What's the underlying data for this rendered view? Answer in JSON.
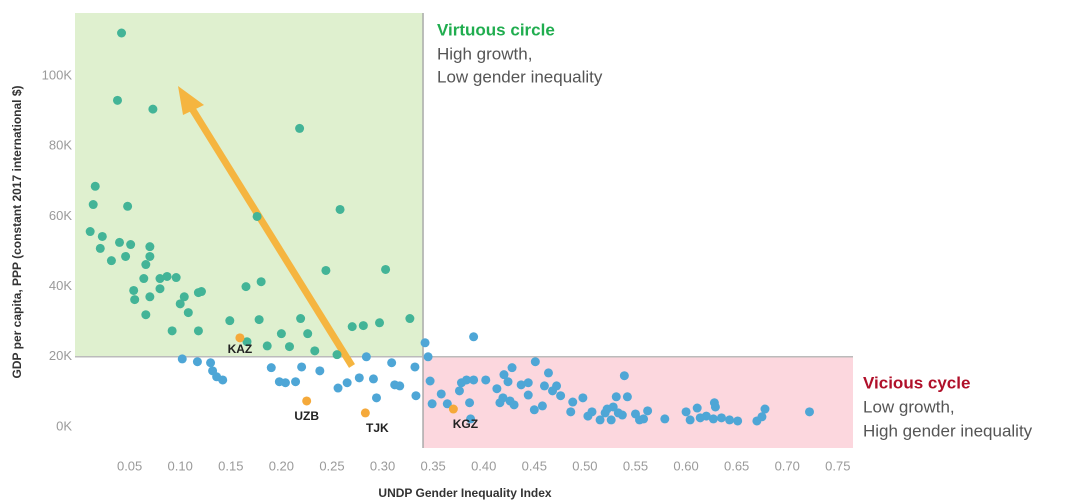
{
  "chart_data": {
    "type": "scatter",
    "x_label": "UNDP Gender Inequality Index",
    "y_label": "GDP per capita, PPP (constant 2017 international $)",
    "xlim": [
      -0.004,
      0.765
    ],
    "ylim": [
      -6000,
      118000
    ],
    "xticks": [
      0.05,
      {
        "value": 0.1,
        "label": "0.10"
      },
      0.15,
      {
        "value": 0.2,
        "label": "0.20"
      },
      0.25,
      {
        "value": 0.3,
        "label": "0.30"
      },
      0.35,
      {
        "value": 0.4,
        "label": "0.40"
      },
      0.45,
      {
        "value": 0.5,
        "label": "0.50"
      },
      0.55,
      {
        "value": 0.6,
        "label": "0.60"
      },
      0.65,
      {
        "value": 0.7,
        "label": "0.70"
      },
      0.75
    ],
    "yticks": [
      {
        "value": 0,
        "label": "0K"
      },
      {
        "value": 20000,
        "label": "20K"
      },
      {
        "value": 40000,
        "label": "40K"
      },
      {
        "value": 60000,
        "label": "60K"
      },
      {
        "value": 80000,
        "label": "80K"
      },
      {
        "value": 100000,
        "label": "100K"
      }
    ],
    "grid": false,
    "thresholds": {
      "x": 0.34,
      "y": 20000
    },
    "quadrant_colors": {
      "virtuous": "#dff0cf",
      "vicious": "#fcd7de"
    },
    "annotations": [
      {
        "text": "Virtuous circle",
        "color": "#20ad4f"
      },
      {
        "text": "High growth,",
        "color": "#555555"
      },
      {
        "text": "Low gender inequality",
        "color": "#555555"
      },
      {
        "text": "Vicious cycle",
        "color": "#b0102a"
      },
      {
        "text": "Low growth,",
        "color": "#555555"
      },
      {
        "text": "High gender inequality",
        "color": "#555555"
      }
    ],
    "series": [
      {
        "color": "#43b497",
        "x": [
          0.042,
          0.038,
          0.073,
          0.218,
          0.016,
          0.014,
          0.048,
          0.258,
          0.011,
          0.023,
          0.04,
          0.051,
          0.07,
          0.021,
          0.032,
          0.046,
          0.07,
          0.066,
          0.244,
          0.303,
          0.064,
          0.08,
          0.087,
          0.096,
          0.08,
          0.054,
          0.121,
          0.118,
          0.165,
          0.18,
          0.104,
          0.07,
          0.055,
          0.1,
          0.108,
          0.066,
          0.149,
          0.178,
          0.219,
          0.327,
          0.297,
          0.281,
          0.27,
          0.092,
          0.118,
          0.2,
          0.226,
          0.166,
          0.186,
          0.208,
          0.233,
          0.176,
          0.255
        ],
        "values": [
          112300,
          93100,
          90600,
          85100,
          68600,
          63400,
          62900,
          62000,
          55700,
          54300,
          52600,
          52000,
          51400,
          50900,
          47400,
          48600,
          48600,
          46300,
          44600,
          44900,
          42300,
          42300,
          42900,
          42600,
          39400,
          38900,
          38600,
          38300,
          40000,
          41400,
          37100,
          37100,
          36300,
          35100,
          32600,
          32000,
          30300,
          30600,
          30900,
          30900,
          29700,
          28900,
          28600,
          27400,
          27400,
          26600,
          26600,
          24300,
          23100,
          22900,
          21700,
          60000,
          20600
        ]
      },
      {
        "color": "#4ea6d6",
        "x": [
          0.102,
          0.117,
          0.13,
          0.132,
          0.136,
          0.142,
          0.19,
          0.198,
          0.204,
          0.214,
          0.22,
          0.238,
          0.256,
          0.265,
          0.277,
          0.284,
          0.291,
          0.294,
          0.309,
          0.312,
          0.317,
          0.332,
          0.333,
          0.342,
          0.345,
          0.39,
          0.347,
          0.349,
          0.358,
          0.364,
          0.376,
          0.378,
          0.383,
          0.386,
          0.387,
          0.39,
          0.402,
          0.413,
          0.416,
          0.419,
          0.424,
          0.428,
          0.42,
          0.426,
          0.43,
          0.437,
          0.444,
          0.444,
          0.45,
          0.451,
          0.458,
          0.46,
          0.464,
          0.468,
          0.472,
          0.476,
          0.486,
          0.488,
          0.498,
          0.503,
          0.507,
          0.515,
          0.52,
          0.522,
          0.526,
          0.528,
          0.533,
          0.537,
          0.539,
          0.542,
          0.55,
          0.554,
          0.562,
          0.579,
          0.6,
          0.604,
          0.611,
          0.614,
          0.62,
          0.627,
          0.628,
          0.629,
          0.635,
          0.643,
          0.651,
          0.67,
          0.675,
          0.678,
          0.722,
          0.531,
          0.558
        ],
        "values": [
          19400,
          18600,
          18300,
          16000,
          14300,
          13400,
          16900,
          12900,
          12600,
          12900,
          17100,
          16000,
          11100,
          12600,
          14000,
          20000,
          13700,
          8300,
          18300,
          12000,
          11700,
          17100,
          8900,
          24000,
          20000,
          25700,
          13100,
          6600,
          9400,
          6600,
          10300,
          12600,
          13400,
          6900,
          2300,
          13400,
          13400,
          10900,
          6900,
          8300,
          12900,
          16900,
          14900,
          7400,
          6300,
          12000,
          12600,
          9100,
          4900,
          18600,
          6000,
          11700,
          15400,
          10300,
          11700,
          8900,
          4300,
          7100,
          8300,
          3100,
          4300,
          2000,
          4000,
          5100,
          2000,
          5700,
          4000,
          3400,
          14600,
          8600,
          3700,
          2000,
          4600,
          2300,
          4300,
          2000,
          5400,
          2600,
          3100,
          2300,
          6900,
          5700,
          2600,
          2000,
          1700,
          1700,
          2900,
          5100,
          4300,
          8600,
          2300
        ]
      },
      {
        "color": "#f5a93a",
        "x": [
          0.159,
          0.225,
          0.283,
          0.37
        ],
        "values": [
          25400,
          7400,
          4000,
          5100
        ],
        "labels": [
          "KAZ",
          "UZB",
          "TJK",
          "KGZ"
        ]
      }
    ]
  }
}
